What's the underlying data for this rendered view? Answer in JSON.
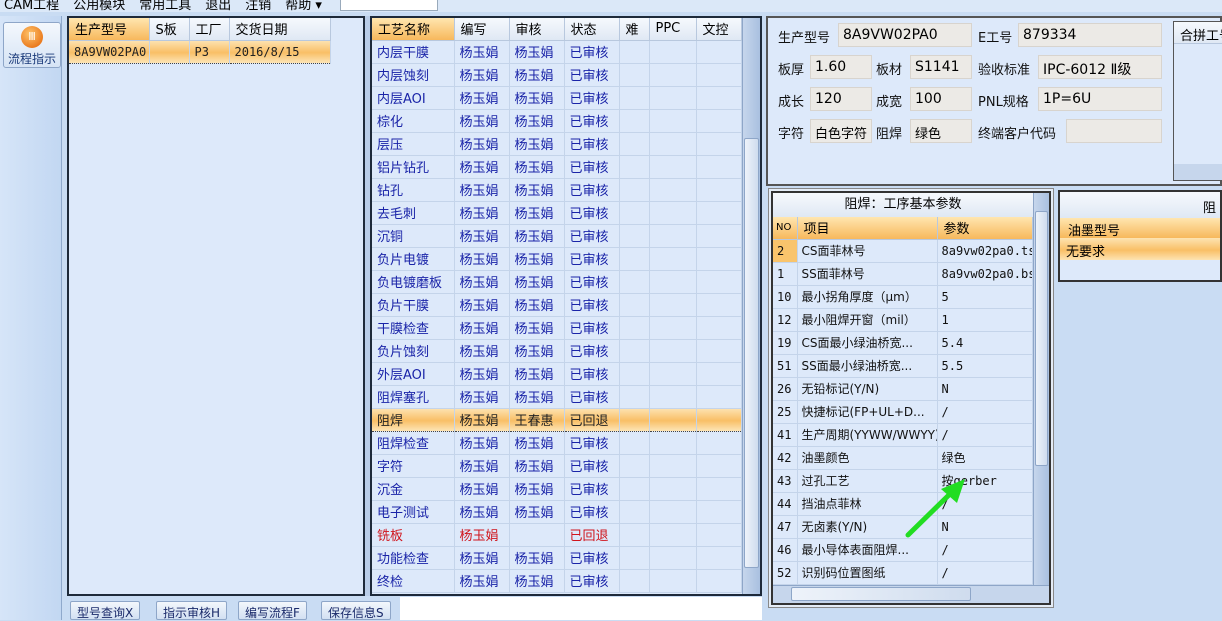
{
  "menu": [
    "CAM工程",
    "公用模块",
    "常用工具",
    "退出",
    "注销",
    "帮助 ▾"
  ],
  "toolbar": {
    "flow_button": "流程指示"
  },
  "orders": {
    "columns": [
      "生产型号",
      "S板",
      "工厂",
      "交货日期"
    ],
    "rows": [
      [
        "8A9VW02PA0",
        "",
        "P3",
        "2016/8/15"
      ]
    ]
  },
  "process": {
    "columns": [
      "工艺名称",
      "编写",
      "审核",
      "状态",
      "难",
      "PPC",
      "文控"
    ],
    "rows": [
      [
        "内层干膜",
        "杨玉娟",
        "杨玉娟",
        "已审核"
      ],
      [
        "内层蚀刻",
        "杨玉娟",
        "杨玉娟",
        "已审核"
      ],
      [
        "内层AOI",
        "杨玉娟",
        "杨玉娟",
        "已审核"
      ],
      [
        "棕化",
        "杨玉娟",
        "杨玉娟",
        "已审核"
      ],
      [
        "层压",
        "杨玉娟",
        "杨玉娟",
        "已审核"
      ],
      [
        "铝片钻孔",
        "杨玉娟",
        "杨玉娟",
        "已审核"
      ],
      [
        "钻孔",
        "杨玉娟",
        "杨玉娟",
        "已审核"
      ],
      [
        "去毛刺",
        "杨玉娟",
        "杨玉娟",
        "已审核"
      ],
      [
        "沉铜",
        "杨玉娟",
        "杨玉娟",
        "已审核"
      ],
      [
        "负片电镀",
        "杨玉娟",
        "杨玉娟",
        "已审核"
      ],
      [
        "负电镀磨板",
        "杨玉娟",
        "杨玉娟",
        "已审核"
      ],
      [
        "负片干膜",
        "杨玉娟",
        "杨玉娟",
        "已审核"
      ],
      [
        "干膜检查",
        "杨玉娟",
        "杨玉娟",
        "已审核"
      ],
      [
        "负片蚀刻",
        "杨玉娟",
        "杨玉娟",
        "已审核"
      ],
      [
        "外层AOI",
        "杨玉娟",
        "杨玉娟",
        "已审核"
      ],
      [
        "阻焊塞孔",
        "杨玉娟",
        "杨玉娟",
        "已审核"
      ],
      [
        "阻焊",
        "杨玉娟",
        "王春惠",
        "已回退"
      ],
      [
        "阻焊检查",
        "杨玉娟",
        "杨玉娟",
        "已审核"
      ],
      [
        "字符",
        "杨玉娟",
        "杨玉娟",
        "已审核"
      ],
      [
        "沉金",
        "杨玉娟",
        "杨玉娟",
        "已审核"
      ],
      [
        "电子测试",
        "杨玉娟",
        "杨玉娟",
        "已审核"
      ],
      [
        "铣板",
        "杨玉娟",
        "",
        "已回退"
      ],
      [
        "功能检查",
        "杨玉娟",
        "杨玉娟",
        "已审核"
      ],
      [
        "终检",
        "杨玉娟",
        "杨玉娟",
        "已审核"
      ]
    ],
    "selected_index": 16,
    "red_index": 21
  },
  "buttons": [
    "型号查询X",
    "指示审核H",
    "编写流程F",
    "保存信息S"
  ],
  "info": {
    "model_label": "生产型号",
    "model": "8A9VW02PA0",
    "e_label": "E工号",
    "e": "879334",
    "thick_label": "板厚",
    "thick": "1.60",
    "mat_label": "板材",
    "mat": "S1141",
    "std_label": "验收标准",
    "std": "IPC-6012 Ⅱ级",
    "len_label": "成长",
    "len": "120",
    "wid_label": "成宽",
    "wid": "100",
    "pnl_label": "PNL规格",
    "pnl": "1P=6U",
    "char_label": "字符",
    "char": "白色字符",
    "mask_label": "阻焊",
    "mask": "绿色",
    "cust_label": "终端客户代码",
    "cust": "",
    "combine_label": "合拼工号"
  },
  "params": {
    "title": "阻焊：工序基本参数",
    "columns": [
      "NO",
      "项目",
      "参数"
    ],
    "rows": [
      [
        "2",
        "CS面菲林号",
        "8a9vw02pa0.ts"
      ],
      [
        "1",
        "SS面菲林号",
        "8a9vw02pa0.bs"
      ],
      [
        "10",
        "最小拐角厚度（μm）",
        "5"
      ],
      [
        "12",
        "最小阻焊开窗（mil）",
        "1"
      ],
      [
        "19",
        "CS面最小绿油桥宽...",
        "5.4"
      ],
      [
        "51",
        "SS面最小绿油桥宽...",
        "5.5"
      ],
      [
        "26",
        "无铅标记(Y/N)",
        "N"
      ],
      [
        "25",
        "快捷标记(FP+UL+D...",
        "/"
      ],
      [
        "41",
        "生产周期(YYWW/WWYY)",
        "/"
      ],
      [
        "42",
        "油墨颜色",
        "绿色"
      ],
      [
        "43",
        "过孔工艺",
        "按gerber"
      ],
      [
        "44",
        "挡油点菲林",
        "/"
      ],
      [
        "47",
        "无卤素(Y/N)",
        "N"
      ],
      [
        "46",
        "最小导体表面阻焊...",
        "/"
      ],
      [
        "52",
        "识别码位置图纸",
        "/"
      ]
    ]
  },
  "ink": {
    "title": "阻",
    "column": "油墨型号",
    "value": "无要求"
  }
}
